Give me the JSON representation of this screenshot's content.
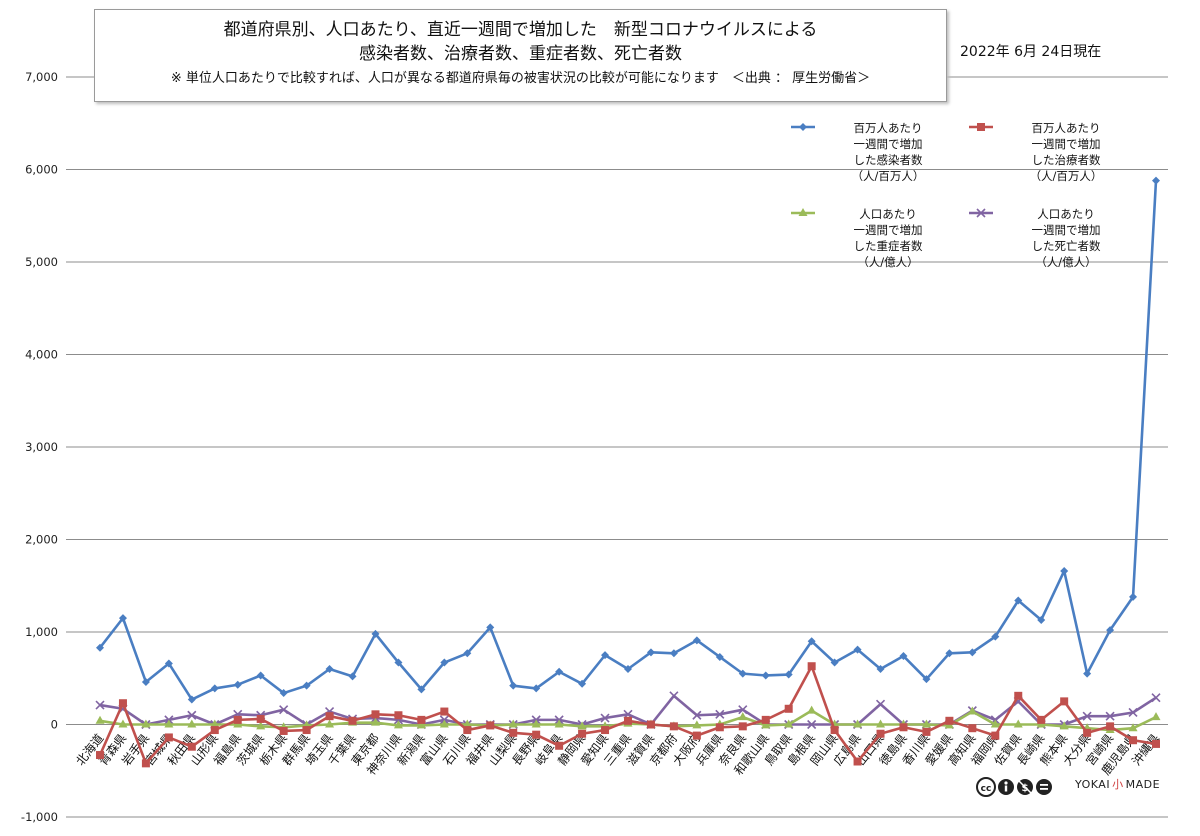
{
  "title": {
    "line1": "都道府県別、人口あたり、直近一週間で増加した　新型コロナウイルスによる",
    "line2": "感染者数、治療者数、重症者数、死亡者数",
    "note": "※ 単位人口あたりで比較すれば、人口が異なる都道府県毎の被害状況の比較が可能になります　＜出典 ： 厚生労働省＞"
  },
  "date": "2022年 6月 24日現在",
  "credit": {
    "brand_left": "YOKAI",
    "brand_mid": "小",
    "brand_right": "MADE"
  },
  "chart_data": {
    "type": "line",
    "title": "都道府県別、人口あたり、直近一週間で増加した　新型コロナウイルスによる 感染者数、治療者数、重症者数、死亡者数",
    "ylim": [
      -1000,
      7000
    ],
    "yticks": [
      -1000,
      0,
      1000,
      2000,
      3000,
      4000,
      5000,
      6000,
      7000
    ],
    "ytick_labels": [
      "-1,000",
      "0",
      "1,000",
      "2,000",
      "3,000",
      "4,000",
      "5,000",
      "6,000",
      "7,000"
    ],
    "grid": true,
    "legend_position": "top-right",
    "categories": [
      "北海道",
      "青森県",
      "岩手県",
      "宮城県",
      "秋田県",
      "山形県",
      "福島県",
      "茨城県",
      "栃木県",
      "群馬県",
      "埼玉県",
      "千葉県",
      "東京都",
      "神奈川県",
      "新潟県",
      "富山県",
      "石川県",
      "福井県",
      "山梨県",
      "長野県",
      "岐阜県",
      "静岡県",
      "愛知県",
      "三重県",
      "滋賀県",
      "京都府",
      "大阪府",
      "兵庫県",
      "奈良県",
      "和歌山県",
      "鳥取県",
      "島根県",
      "岡山県",
      "広島県",
      "山口県",
      "徳島県",
      "香川県",
      "愛媛県",
      "高知県",
      "福岡県",
      "佐賀県",
      "長崎県",
      "熊本県",
      "大分県",
      "宮崎県",
      "鹿児島県",
      "沖縄県"
    ],
    "series": [
      {
        "name": "百万人あたり 一週間で増加 した感染者数 （人/百万人）",
        "color": "#4a7ec2",
        "marker": "diamond",
        "values": [
          830,
          1150,
          460,
          660,
          270,
          390,
          430,
          530,
          340,
          420,
          600,
          520,
          980,
          670,
          380,
          670,
          770,
          1050,
          420,
          390,
          570,
          440,
          750,
          600,
          780,
          770,
          910,
          730,
          550,
          530,
          540,
          900,
          670,
          810,
          600,
          740,
          490,
          770,
          780,
          950,
          1340,
          1130,
          1660,
          550,
          1020,
          1380,
          5880
        ]
      },
      {
        "name": "百万人あたり 一週間で増加 した治療者数 （人/百万人）",
        "color": "#c0504d",
        "marker": "square",
        "values": [
          -330,
          230,
          -420,
          -140,
          -240,
          -60,
          50,
          60,
          -70,
          -60,
          90,
          40,
          110,
          100,
          50,
          140,
          -60,
          -10,
          -90,
          -110,
          -230,
          -100,
          -60,
          40,
          0,
          -20,
          -120,
          -30,
          -20,
          50,
          170,
          630,
          -60,
          -400,
          -100,
          -30,
          -80,
          40,
          -40,
          -120,
          310,
          50,
          250,
          -90,
          -20,
          -170,
          -210
        ]
      },
      {
        "name": "人口あたり 一週間で増加 した重症者数 （人/億人）",
        "color": "#9bbb59",
        "marker": "triangle",
        "values": [
          40,
          0,
          0,
          0,
          0,
          0,
          0,
          -20,
          -30,
          -10,
          0,
          20,
          20,
          -10,
          -10,
          0,
          0,
          -10,
          0,
          0,
          0,
          -20,
          -20,
          10,
          0,
          -20,
          -10,
          0,
          80,
          -10,
          0,
          150,
          0,
          0,
          0,
          0,
          0,
          -10,
          140,
          0,
          0,
          0,
          -20,
          -40,
          -60,
          -40,
          80
        ]
      },
      {
        "name": "人口あたり 一週間で増加 した死亡者数 （人/億人）",
        "color": "#8064a2",
        "marker": "x",
        "values": [
          210,
          170,
          0,
          50,
          100,
          0,
          110,
          100,
          160,
          0,
          140,
          60,
          70,
          50,
          0,
          50,
          0,
          0,
          0,
          50,
          50,
          0,
          70,
          110,
          0,
          310,
          100,
          110,
          160,
          0,
          0,
          0,
          0,
          0,
          220,
          0,
          0,
          0,
          150,
          50,
          250,
          0,
          0,
          90,
          90,
          130,
          290
        ]
      }
    ]
  },
  "legend": [
    {
      "lines": [
        "百万人あたり",
        "一週間で増加",
        "した感染者数",
        "（人/百万人）"
      ],
      "color": "#4a7ec2",
      "marker": "diamond"
    },
    {
      "lines": [
        "百万人あたり",
        "一週間で増加",
        "した治療者数",
        "（人/百万人）"
      ],
      "color": "#c0504d",
      "marker": "square"
    },
    {
      "lines": [
        "人口あたり",
        "一週間で増加",
        "した重症者数",
        "（人/億人）"
      ],
      "color": "#9bbb59",
      "marker": "triangle"
    },
    {
      "lines": [
        "人口あたり",
        "一週間で増加",
        "した死亡者数",
        "（人/億人）"
      ],
      "color": "#8064a2",
      "marker": "x"
    }
  ]
}
